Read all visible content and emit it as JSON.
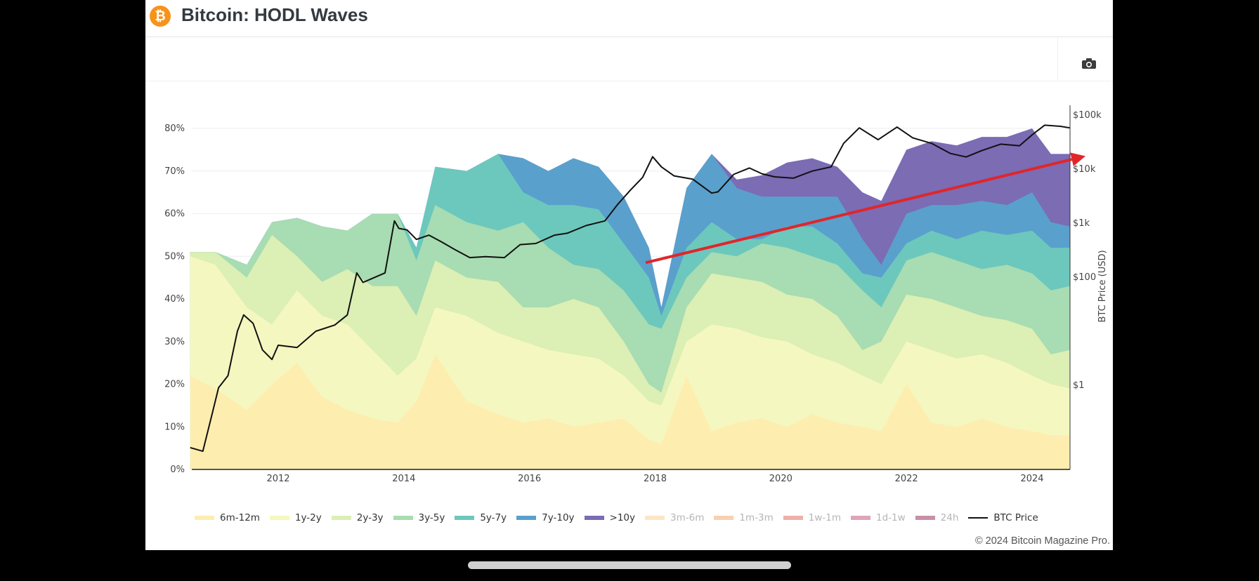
{
  "header": {
    "logo_icon": "bitcoin-logo-icon",
    "logo_glyph": "₿",
    "title": "Bitcoin: HODL Waves"
  },
  "toolbar": {
    "camera_icon": "camera-icon"
  },
  "footer": {
    "copyright": "© 2024 Bitcoin Magazine Pro."
  },
  "chart_data": {
    "type": "area",
    "stacked": true,
    "title": "Bitcoin: HODL Waves",
    "xlabel": "",
    "ylabel": "",
    "y2label": "BTC Price (USD)",
    "x_ticks": [
      "2012",
      "2014",
      "2016",
      "2018",
      "2020",
      "2022",
      "2024"
    ],
    "xlim": [
      2010.6,
      2024.6
    ],
    "y_ticks": [
      "0%",
      "10%",
      "20%",
      "30%",
      "40%",
      "50%",
      "60%",
      "70%",
      "80%"
    ],
    "ylim": [
      0,
      85
    ],
    "y2_scale": "log",
    "y2_ticks": [
      "$1",
      "$100",
      "$1k",
      "$10k",
      "$100k"
    ],
    "y2_tick_values": [
      1,
      100,
      1000,
      10000,
      100000
    ],
    "y2lim": [
      0.04,
      230000
    ],
    "grid": true,
    "legend_position": "bottom",
    "x": [
      2010.6,
      2011.0,
      2011.5,
      2011.9,
      2012.3,
      2012.7,
      2013.1,
      2013.5,
      2013.9,
      2014.2,
      2014.5,
      2015.0,
      2015.5,
      2015.9,
      2016.3,
      2016.7,
      2017.1,
      2017.5,
      2017.9,
      2018.1,
      2018.5,
      2018.9,
      2019.3,
      2019.7,
      2020.1,
      2020.5,
      2020.9,
      2021.3,
      2021.6,
      2022.0,
      2022.4,
      2022.8,
      2023.2,
      2023.6,
      2024.0,
      2024.3,
      2024.6
    ],
    "series": [
      {
        "name": "6m-12m",
        "color": "#fdeeb0",
        "visible": true,
        "cumulative_top": [
          22,
          19,
          14,
          20,
          25,
          17,
          14,
          12,
          11,
          16,
          27,
          16,
          13,
          11,
          12,
          10,
          11,
          12,
          7,
          6,
          22,
          9,
          11,
          12,
          10,
          13,
          11,
          10,
          9,
          20,
          11,
          10,
          12,
          10,
          9,
          8,
          8
        ]
      },
      {
        "name": "1y-2y",
        "color": "#f4f8c0",
        "visible": true,
        "cumulative_top": [
          50,
          48,
          38,
          34,
          42,
          36,
          34,
          28,
          22,
          26,
          38,
          36,
          32,
          30,
          28,
          27,
          26,
          22,
          16,
          15,
          30,
          34,
          33,
          31,
          30,
          27,
          25,
          22,
          20,
          30,
          28,
          26,
          27,
          25,
          22,
          20,
          19
        ]
      },
      {
        "name": "2y-3y",
        "color": "#dcefb4",
        "visible": true,
        "cumulative_top": [
          51,
          51,
          45,
          55,
          50,
          44,
          47,
          43,
          43,
          36,
          49,
          45,
          44,
          38,
          38,
          40,
          38,
          30,
          20,
          18,
          38,
          46,
          45,
          44,
          41,
          40,
          36,
          28,
          30,
          41,
          40,
          38,
          36,
          35,
          33,
          27,
          28
        ]
      },
      {
        "name": "3y-5y",
        "color": "#a8dcb2",
        "visible": true,
        "cumulative_top": [
          51,
          51,
          48,
          58,
          59,
          57,
          56,
          60,
          60,
          49,
          62,
          58,
          56,
          58,
          52,
          48,
          47,
          42,
          34,
          33,
          45,
          51,
          50,
          53,
          52,
          50,
          48,
          42,
          38,
          49,
          51,
          49,
          47,
          48,
          46,
          42,
          43
        ]
      },
      {
        "name": "5y-7y",
        "color": "#6cc8bc",
        "visible": true,
        "cumulative_top": [
          51,
          51,
          48,
          58,
          59,
          57,
          56,
          60,
          60,
          52,
          71,
          70,
          74,
          65,
          62,
          62,
          61,
          53,
          45,
          36,
          52,
          58,
          54,
          54,
          57,
          57,
          53,
          46,
          45,
          53,
          56,
          54,
          56,
          55,
          56,
          52,
          52
        ]
      },
      {
        "name": "7y-10y",
        "color": "#5aa0cc",
        "visible": true,
        "cumulative_top": [
          51,
          51,
          48,
          58,
          59,
          57,
          56,
          60,
          60,
          52,
          71,
          70,
          74,
          73,
          70,
          73,
          71,
          64,
          52,
          38,
          66,
          74,
          66,
          64,
          64,
          64,
          64,
          54,
          48,
          60,
          62,
          62,
          63,
          62,
          65,
          58,
          57
        ]
      },
      {
        "name": ">10y",
        "color": "#7b6cb4",
        "visible": true,
        "cumulative_top": [
          51,
          51,
          48,
          58,
          59,
          57,
          56,
          60,
          60,
          52,
          71,
          70,
          74,
          73,
          70,
          73,
          71,
          64,
          52,
          38,
          66,
          74,
          68,
          69,
          72,
          73,
          71,
          65,
          63,
          75,
          77,
          76,
          78,
          78,
          80,
          74,
          74
        ]
      },
      {
        "name": "3m-6m",
        "color": "#fde6c4",
        "visible": false
      },
      {
        "name": "1m-3m",
        "color": "#f8d0b0",
        "visible": false
      },
      {
        "name": "1w-1m",
        "color": "#eeb0a8",
        "visible": false
      },
      {
        "name": "1d-1w",
        "color": "#dea4b8",
        "visible": false
      },
      {
        "name": "24h",
        "color": "#c890a8",
        "visible": false
      }
    ],
    "price_series": {
      "name": "BTC Price",
      "color": "#111111",
      "axis": "y2",
      "x": [
        2010.6,
        2010.8,
        2010.95,
        2011.05,
        2011.2,
        2011.35,
        2011.45,
        2011.6,
        2011.75,
        2011.9,
        2012.0,
        2012.3,
        2012.6,
        2012.9,
        2013.1,
        2013.25,
        2013.35,
        2013.5,
        2013.7,
        2013.85,
        2013.92,
        2014.05,
        2014.2,
        2014.4,
        2014.6,
        2014.8,
        2015.05,
        2015.3,
        2015.6,
        2015.85,
        2016.1,
        2016.4,
        2016.6,
        2016.9,
        2017.2,
        2017.4,
        2017.6,
        2017.8,
        2017.96,
        2018.1,
        2018.3,
        2018.6,
        2018.9,
        2019.0,
        2019.25,
        2019.5,
        2019.7,
        2019.9,
        2020.2,
        2020.5,
        2020.8,
        2021.0,
        2021.25,
        2021.55,
        2021.85,
        2022.1,
        2022.4,
        2022.7,
        2022.95,
        2023.2,
        2023.5,
        2023.8,
        2024.0,
        2024.2,
        2024.45,
        2024.6
      ],
      "values": [
        0.07,
        0.06,
        0.3,
        0.9,
        1.5,
        10,
        20,
        14,
        4.5,
        3,
        5.5,
        5,
        10,
        13,
        20,
        120,
        80,
        95,
        120,
        1100,
        800,
        750,
        500,
        600,
        450,
        330,
        230,
        240,
        230,
        400,
        420,
        600,
        650,
        900,
        1100,
        2200,
        4000,
        7000,
        17000,
        11000,
        7500,
        6500,
        3600,
        3800,
        8000,
        10500,
        8200,
        7200,
        6800,
        9200,
        11000,
        30000,
        58000,
        35000,
        60000,
        38000,
        30000,
        19500,
        16800,
        22000,
        29000,
        27000,
        43000,
        65000,
        62000,
        58000
      ]
    },
    "annotation": {
      "type": "arrow",
      "color": "#e0262b",
      "description": "Red upward trend arrow from 2018 low rising toward 2024",
      "from": {
        "x": 2017.85,
        "y": 48.5
      },
      "to": {
        "x": 2024.85,
        "y": 73.5
      }
    }
  }
}
